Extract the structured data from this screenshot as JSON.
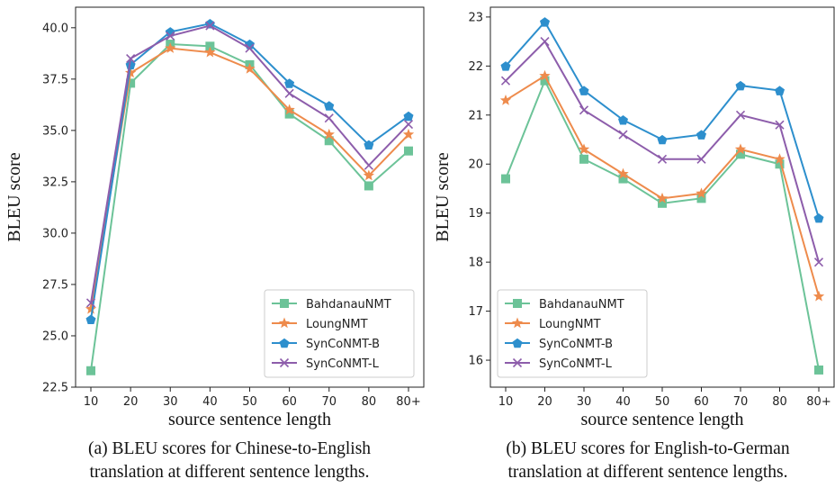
{
  "chart_data": [
    {
      "type": "line",
      "categories": [
        "10",
        "20",
        "30",
        "40",
        "50",
        "60",
        "70",
        "80",
        "80+"
      ],
      "xlabel": "source sentence length",
      "ylabel": "BLEU score",
      "ylim": [
        22.5,
        41.0
      ],
      "yticks": [
        "22.5",
        "25.0",
        "27.5",
        "30.0",
        "32.5",
        "35.0",
        "37.5",
        "40.0"
      ],
      "legend_position": "lower-right",
      "series": [
        {
          "name": "BahdanauNMT",
          "marker": "square",
          "color": "#6cc398",
          "values": [
            23.3,
            37.3,
            39.2,
            39.1,
            38.2,
            35.8,
            34.5,
            32.3,
            34.0
          ]
        },
        {
          "name": "LoungNMT",
          "marker": "star",
          "color": "#ee8b4c",
          "values": [
            26.3,
            37.8,
            39.0,
            38.8,
            38.0,
            36.0,
            34.8,
            32.8,
            34.8
          ]
        },
        {
          "name": "SynCoNMT-B",
          "marker": "pentagon",
          "color": "#2d8fcd",
          "values": [
            25.8,
            38.2,
            39.8,
            40.2,
            39.2,
            37.3,
            36.2,
            34.3,
            35.7
          ]
        },
        {
          "name": "SynCoNMT-L",
          "marker": "x",
          "color": "#8d5dab",
          "values": [
            26.6,
            38.5,
            39.6,
            40.1,
            39.0,
            36.8,
            35.6,
            33.3,
            35.3
          ]
        }
      ]
    },
    {
      "type": "line",
      "categories": [
        "10",
        "20",
        "30",
        "40",
        "50",
        "60",
        "70",
        "80",
        "80+"
      ],
      "xlabel": "source sentence length",
      "ylabel": "BLEU score",
      "ylim": [
        15.45,
        23.2
      ],
      "yticks": [
        "16",
        "17",
        "18",
        "19",
        "20",
        "21",
        "22",
        "23"
      ],
      "legend_position": "lower-left",
      "series": [
        {
          "name": "BahdanauNMT",
          "marker": "square",
          "color": "#6cc398",
          "values": [
            19.7,
            21.7,
            20.1,
            19.7,
            19.2,
            19.3,
            20.2,
            20.0,
            15.8
          ]
        },
        {
          "name": "LoungNMT",
          "marker": "star",
          "color": "#ee8b4c",
          "values": [
            21.3,
            21.8,
            20.3,
            19.8,
            19.3,
            19.4,
            20.3,
            20.1,
            17.3
          ]
        },
        {
          "name": "SynCoNMT-B",
          "marker": "pentagon",
          "color": "#2d8fcd",
          "values": [
            22.0,
            22.9,
            21.5,
            20.9,
            20.5,
            20.6,
            21.6,
            21.5,
            18.9
          ]
        },
        {
          "name": "SynCoNMT-L",
          "marker": "x",
          "color": "#8d5dab",
          "values": [
            21.7,
            22.5,
            21.1,
            20.6,
            20.1,
            20.1,
            21.0,
            20.8,
            18.0
          ]
        }
      ]
    }
  ],
  "captions": {
    "a_line1": "(a) BLEU scores for Chinese-to-English",
    "a_line2": "translation at different sentence lengths.",
    "b_line1": "(b) BLEU scores for English-to-German",
    "b_line2": "translation at different sentence lengths."
  }
}
